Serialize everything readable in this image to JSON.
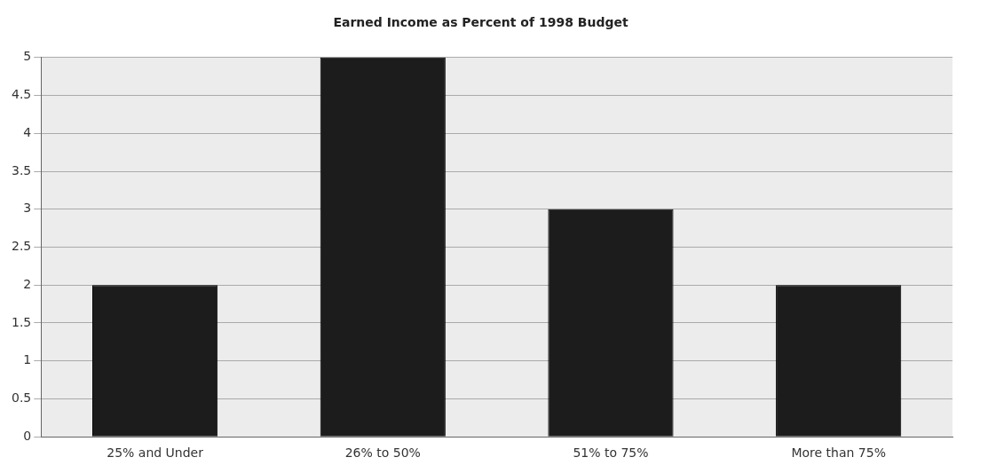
{
  "chart_data": {
    "type": "bar",
    "title": "Earned Income as Percent of 1998 Budget",
    "categories": [
      "25% and Under",
      "26% to 50%",
      "51% to 75%",
      "More than 75%"
    ],
    "values": [
      2,
      5,
      3,
      2
    ],
    "color": "#1c1c1c",
    "ylim": [
      0,
      5
    ],
    "yticks": [
      0,
      0.5,
      1,
      1.5,
      2,
      2.5,
      3,
      3.5,
      4,
      4.5,
      5
    ],
    "grid": "y"
  }
}
